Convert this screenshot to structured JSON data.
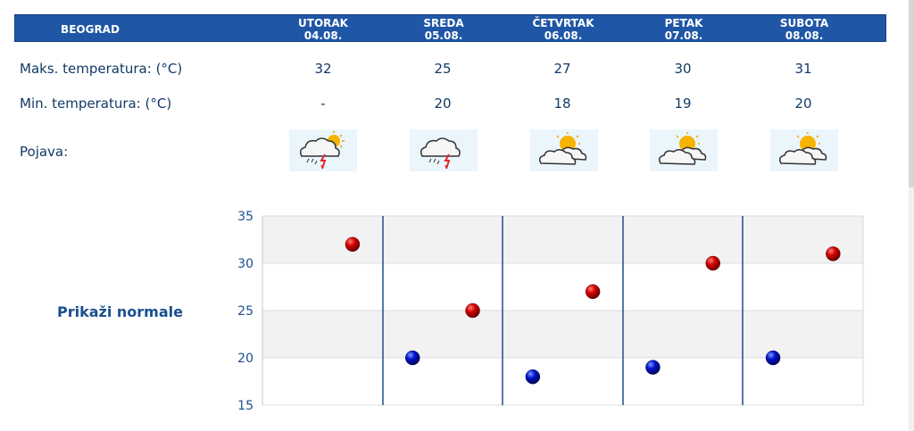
{
  "city": "BEOGRAD",
  "days": [
    {
      "name": "UTORAK",
      "date": "04.08.",
      "max": "32",
      "min": "-",
      "icon": "thunderstorm-sun-icon"
    },
    {
      "name": "SREDA",
      "date": "05.08.",
      "max": "25",
      "min": "20",
      "icon": "thunderstorm-icon"
    },
    {
      "name": "ČETVRTAK",
      "date": "06.08.",
      "max": "27",
      "min": "18",
      "icon": "partly-cloudy-icon"
    },
    {
      "name": "PETAK",
      "date": "07.08.",
      "max": "30",
      "min": "19",
      "icon": "partly-cloudy-icon"
    },
    {
      "name": "SUBOTA",
      "date": "08.08.",
      "max": "31",
      "min": "20",
      "icon": "partly-cloudy-icon"
    }
  ],
  "labels": {
    "max": "Maks. temperatura: (°C)",
    "min": "Min. temperatura: (°C)",
    "phenomenon": "Pojava:"
  },
  "normals_link": "Prikaži normale",
  "chart_data": {
    "type": "scatter",
    "categories": [
      "04.08.",
      "05.08.",
      "06.08.",
      "07.08.",
      "08.08."
    ],
    "series": [
      {
        "color": "#cc0000",
        "values": [
          32,
          25,
          27,
          30,
          31
        ]
      },
      {
        "color": "#0000cc",
        "values": [
          null,
          20,
          18,
          19,
          20
        ]
      }
    ],
    "ylim": [
      15,
      35
    ],
    "yticks": [
      "15",
      "20",
      "25",
      "30",
      "35"
    ],
    "grid": true
  }
}
